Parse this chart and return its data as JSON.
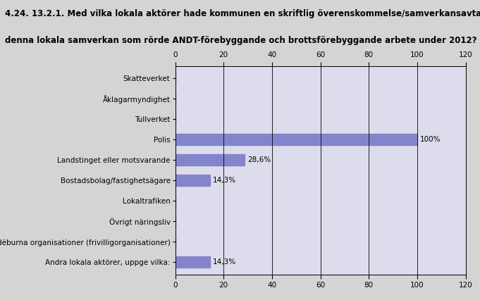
{
  "title_line1": "4.24. 13.2.1. Med vilka lokala aktörer hade kommunen en skriftlig överenskommelse/samverkansavtal för",
  "title_line2": "denna lokala samverkan som rörde ANDT-förebyggande och brottsförebyggande arbete under 2012?",
  "categories": [
    "Skatteverket",
    "Åklagarmyndighet",
    "Tullverket",
    "Polis",
    "Landstinget eller motsvarande",
    "Bostadsbolag/fastighetsägare",
    "Lokaltrafiken",
    "Övrigt näringsliv",
    "Idéburna organisationer (frivilligorganisationer)",
    "Andra lokala aktörer, uppge vilka:"
  ],
  "values": [
    0,
    0,
    0,
    100,
    28.6,
    14.3,
    0,
    0,
    0,
    14.3
  ],
  "labels": [
    "",
    "",
    "",
    "100%",
    "28,6%",
    "14,3%",
    "",
    "",
    "",
    "14,3%"
  ],
  "bar_color": "#8484cc",
  "background_color": "#d4d4d4",
  "plot_bg_color": "#dcdcec",
  "xlim": [
    0,
    120
  ],
  "xticks": [
    0,
    20,
    40,
    60,
    80,
    100,
    120
  ],
  "title_fontsize": 8.5,
  "label_fontsize": 7.5,
  "tick_fontsize": 7.5
}
